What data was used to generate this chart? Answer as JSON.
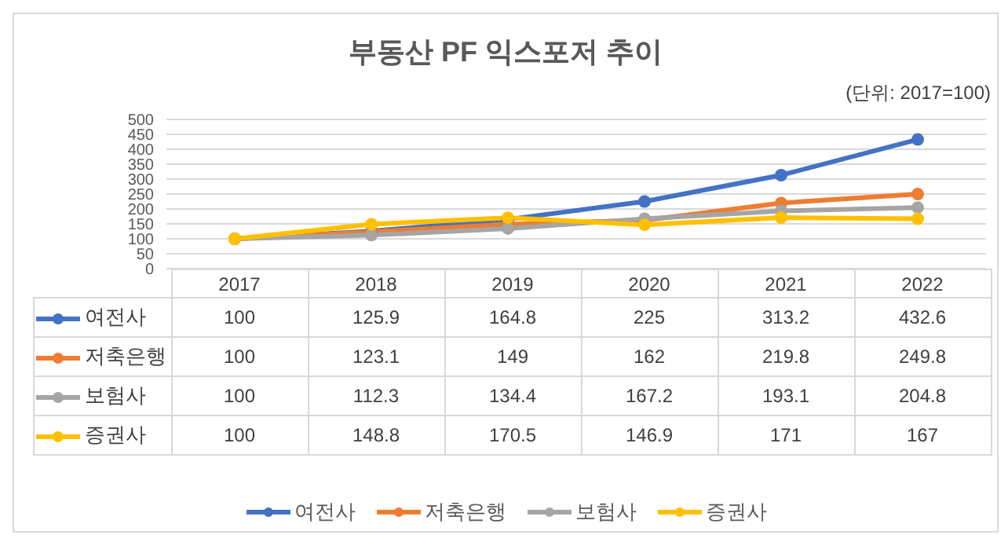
{
  "chart_data": {
    "type": "line",
    "title": "부동산 PF 익스포저 추이",
    "subtitle": "(단위: 2017=100)",
    "categories": [
      "2017",
      "2018",
      "2019",
      "2020",
      "2021",
      "2022"
    ],
    "series": [
      {
        "name": "여전사",
        "color": "#4472c4",
        "values": [
          100,
          125.9,
          164.8,
          225,
          313.2,
          432.6
        ]
      },
      {
        "name": "저축은행",
        "color": "#ed7d31",
        "values": [
          100,
          123.1,
          149,
          162,
          219.8,
          249.8
        ]
      },
      {
        "name": "보험사",
        "color": "#a5a5a5",
        "values": [
          100,
          112.3,
          134.4,
          167.2,
          193.1,
          204.8
        ]
      },
      {
        "name": "증권사",
        "color": "#ffc000",
        "values": [
          100,
          148.8,
          170.5,
          146.9,
          171,
          167
        ]
      }
    ],
    "ylim": [
      0,
      500
    ],
    "yticks": [
      0,
      50,
      100,
      150,
      200,
      250,
      300,
      350,
      400,
      450,
      500
    ],
    "grid": "y",
    "legend": "bottom",
    "marker": "circle",
    "line_style": "solid",
    "data_labels": true
  }
}
